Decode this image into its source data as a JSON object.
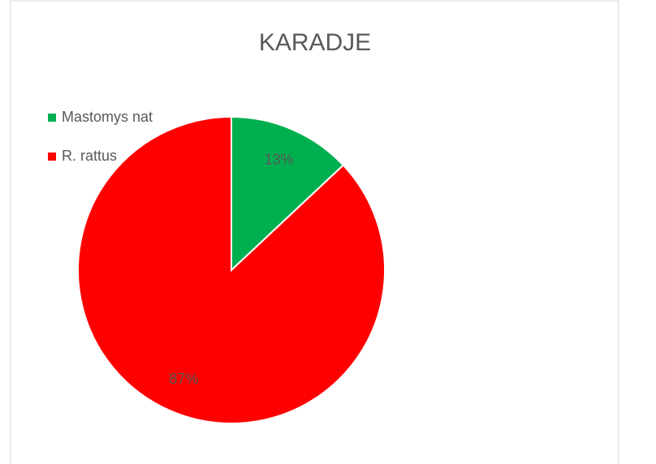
{
  "chart_data": {
    "type": "pie",
    "title": "KARADJE",
    "categories": [
      "Mastomys nat",
      "R. rattus"
    ],
    "values": [
      13,
      87
    ],
    "value_labels": [
      "13%",
      "87%"
    ],
    "colors": [
      "#00b050",
      "#ff0000"
    ],
    "legend": "top-left"
  }
}
